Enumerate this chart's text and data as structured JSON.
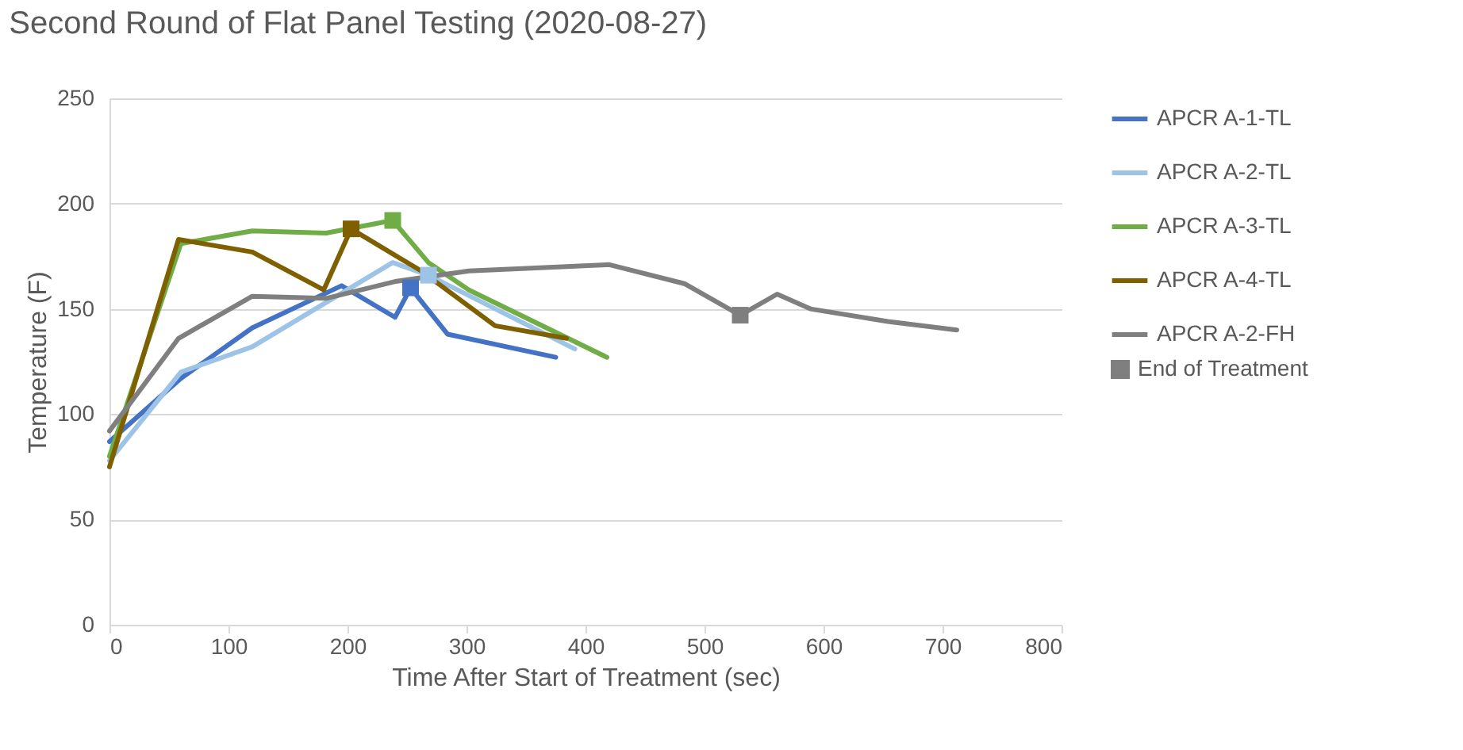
{
  "chart_data": {
    "type": "line",
    "title": "Second Round of Flat Panel Testing (2020-08-27)",
    "xlabel": "Time After Start of Treatment (sec)",
    "ylabel": "Temperature (F)",
    "xlim": [
      0,
      800
    ],
    "xticks": [
      0,
      100,
      200,
      300,
      400,
      500,
      600,
      700,
      800
    ],
    "ylim": [
      0,
      250
    ],
    "yticks": [
      0,
      50,
      100,
      150,
      200,
      250
    ],
    "grid": "y",
    "legend": "right",
    "line_style": "solid",
    "series": [
      {
        "name": "APCR A-1-TL",
        "color": "#4472c4",
        "x": [
          0,
          60,
          120,
          195,
          240,
          253,
          284,
          375
        ],
        "values": [
          87,
          117,
          141,
          161,
          146,
          160,
          138,
          127
        ]
      },
      {
        "name": "APCR A-2-TL",
        "color": "#9dc3e6",
        "x": [
          0,
          60,
          120,
          238,
          268,
          391
        ],
        "values": [
          78,
          120,
          132,
          172,
          166,
          131
        ]
      },
      {
        "name": "APCR A-3-TL",
        "color": "#70ad47",
        "x": [
          0,
          60,
          120,
          182,
          238,
          268,
          302,
          418
        ],
        "values": [
          80,
          181,
          187,
          186,
          192,
          172,
          159,
          127
        ]
      },
      {
        "name": "APCR A-4-TL",
        "color": "#7f6000",
        "x": [
          0,
          58,
          120,
          180,
          203,
          262,
          324,
          384
        ],
        "values": [
          75,
          183,
          177,
          159,
          188,
          168,
          142,
          136
        ]
      },
      {
        "name": "APCR A-2-FH",
        "color": "#7f7f7f",
        "x": [
          0,
          58,
          120,
          182,
          240,
          302,
          420,
          483,
          530,
          561,
          589,
          654,
          712
        ],
        "values": [
          92,
          136,
          156,
          155,
          163,
          168,
          171,
          162,
          147,
          157,
          150,
          144,
          140
        ]
      },
      {
        "name": "End of Treatment",
        "type": "scatter",
        "marker": "square",
        "color": "#7f7f7f",
        "colors": [
          "#4472c4",
          "#9dc3e6",
          "#70ad47",
          "#7f6000",
          "#7f7f7f"
        ],
        "x": [
          253,
          268,
          238,
          203,
          530
        ],
        "values": [
          160,
          166,
          192,
          188,
          147
        ]
      }
    ]
  }
}
